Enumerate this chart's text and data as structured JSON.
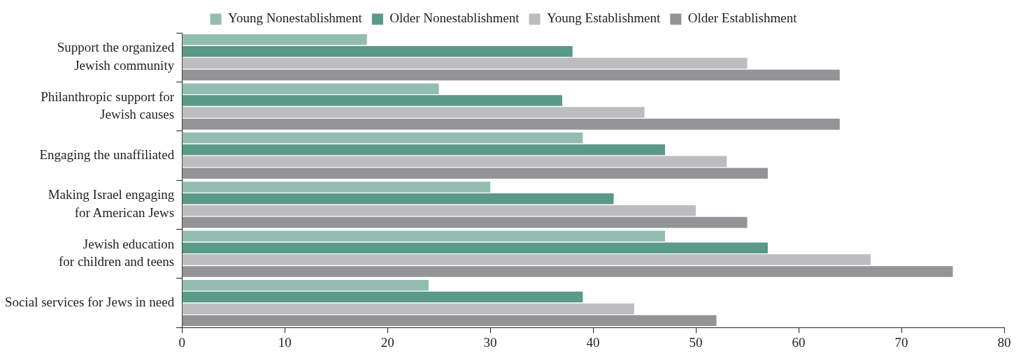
{
  "chart_data": {
    "type": "bar",
    "orientation": "horizontal",
    "categories": [
      "Support the organized\nJewish community",
      "Philanthropic support for\nJewish causes",
      "Engaging the unaffiliated",
      "Making Israel engaging\nfor American Jews",
      "Jewish education\nfor children and teens",
      "Social services for Jews in need"
    ],
    "series": [
      {
        "name": "Young Nonestablishment",
        "color": "#93bdb0",
        "values": [
          18,
          25,
          39,
          30,
          47,
          24
        ]
      },
      {
        "name": "Older Nonestablishment",
        "color": "#5a9a86",
        "values": [
          38,
          37,
          47,
          42,
          57,
          39
        ]
      },
      {
        "name": "Young Establishment",
        "color": "#bdbdbf",
        "values": [
          55,
          45,
          53,
          50,
          67,
          44
        ]
      },
      {
        "name": "Older Establishment",
        "color": "#939496",
        "values": [
          64,
          64,
          57,
          55,
          75,
          52
        ]
      }
    ],
    "xlim": [
      0,
      80
    ],
    "xticks": [
      0,
      10,
      20,
      30,
      40,
      50,
      60,
      70,
      80
    ],
    "grid": false,
    "legend": "top"
  }
}
